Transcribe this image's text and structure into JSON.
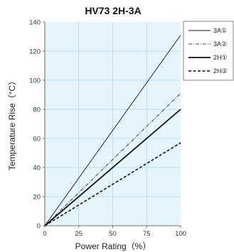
{
  "chart_data": {
    "type": "line",
    "title": "HV73 2H-3A",
    "xlabel": "Power Rating（%）",
    "ylabel": "Temperature Rise（°C）",
    "xlim": [
      0,
      100
    ],
    "ylim": [
      0,
      140
    ],
    "xticks": [
      0,
      25,
      50,
      75,
      100
    ],
    "yticks": [
      0,
      20,
      40,
      60,
      80,
      100,
      120,
      140
    ],
    "grid": true,
    "legend_position": "top-right",
    "colors": {
      "plot_bg": "#e6f4fb",
      "grid": "#b8dff2",
      "line": "#111111"
    },
    "series": [
      {
        "name": "3A①",
        "style": "solid-thin",
        "x": [
          0,
          100
        ],
        "y": [
          0,
          131
        ]
      },
      {
        "name": "3A②",
        "style": "dash-dot-thin",
        "x": [
          0,
          100
        ],
        "y": [
          0,
          91
        ]
      },
      {
        "name": "2H①",
        "style": "solid-thick",
        "x": [
          0,
          100
        ],
        "y": [
          0,
          80
        ]
      },
      {
        "name": "2H②",
        "style": "dashed-thick",
        "x": [
          0,
          100
        ],
        "y": [
          0,
          57
        ]
      }
    ]
  }
}
